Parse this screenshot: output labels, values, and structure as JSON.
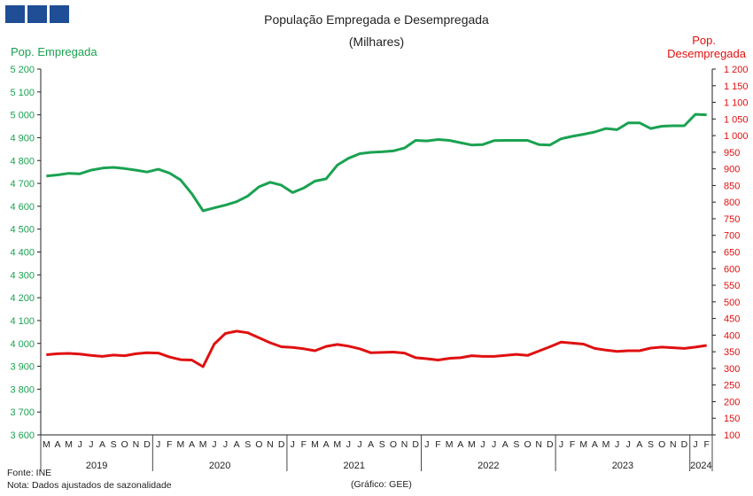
{
  "header": {
    "title": "População Empregada e Desempregada",
    "subtitle": "(Milhares)"
  },
  "axes": {
    "left_title": "Pop. Empregada",
    "right_title_line1": "Pop.",
    "right_title_line2": "Desempregada",
    "left_color": "#1aa251",
    "right_color": "#e01010"
  },
  "footer": {
    "source": "Fonte: INE",
    "note": "Nota: Dados ajustados de sazonalidade",
    "credit": "(Gráfico: GEE)"
  },
  "chart_data": {
    "type": "line",
    "title": "População Empregada e Desempregada",
    "subtitle": "(Milhares)",
    "x_months": [
      "M",
      "A",
      "M",
      "J",
      "J",
      "A",
      "S",
      "O",
      "N",
      "D",
      "J",
      "F",
      "M",
      "A",
      "M",
      "J",
      "J",
      "A",
      "S",
      "O",
      "N",
      "D",
      "J",
      "F",
      "M",
      "A",
      "M",
      "J",
      "J",
      "A",
      "S",
      "O",
      "N",
      "D",
      "J",
      "F",
      "M",
      "A",
      "M",
      "J",
      "J",
      "A",
      "S",
      "O",
      "N",
      "D",
      "J",
      "F",
      "M",
      "A",
      "M",
      "J",
      "J",
      "A",
      "S",
      "O",
      "N",
      "D",
      "J",
      "F"
    ],
    "years": [
      {
        "label": "2019",
        "start": 0,
        "end": 9
      },
      {
        "label": "2020",
        "start": 10,
        "end": 21
      },
      {
        "label": "2021",
        "start": 22,
        "end": 33
      },
      {
        "label": "2022",
        "start": 34,
        "end": 45
      },
      {
        "label": "2023",
        "start": 46,
        "end": 57
      },
      {
        "label": "2024",
        "start": 58,
        "end": 59
      }
    ],
    "left_axis": {
      "label": "Pop. Empregada",
      "min": 3600,
      "max": 5200,
      "step": 100,
      "tick_labels": [
        "3 600",
        "3 700",
        "3 800",
        "3 900",
        "4 000",
        "4 100",
        "4 200",
        "4 300",
        "4 400",
        "4 500",
        "4 600",
        "4 700",
        "4 800",
        "4 900",
        "5 000",
        "5 100",
        "5 200"
      ]
    },
    "right_axis": {
      "label": "Pop. Desempregada",
      "min": 100,
      "max": 1200,
      "step": 50,
      "tick_labels": [
        "100",
        "150",
        "200",
        "250",
        "300",
        "350",
        "400",
        "450",
        "500",
        "550",
        "600",
        "650",
        "700",
        "750",
        "800",
        "850",
        "900",
        "950",
        "1 000",
        "1 050",
        "1 100",
        "1 150",
        "1 200"
      ]
    },
    "series": [
      {
        "name": "Pop. Empregada",
        "axis": "left",
        "color": "#1aa251",
        "values": [
          4732,
          4737,
          4744,
          4742,
          4758,
          4767,
          4770,
          4765,
          4758,
          4750,
          4762,
          4745,
          4715,
          4655,
          4580,
          4593,
          4605,
          4620,
          4645,
          4685,
          4705,
          4692,
          4660,
          4680,
          4710,
          4720,
          4780,
          4810,
          4830,
          4836,
          4838,
          4842,
          4855,
          4888,
          4886,
          4892,
          4888,
          4878,
          4868,
          4870,
          4887,
          4888,
          4888,
          4888,
          4870,
          4868,
          4895,
          4906,
          4915,
          4925,
          4940,
          4935,
          4965,
          4965,
          4940,
          4950,
          4952,
          4952,
          5002,
          5000
        ]
      },
      {
        "name": "Pop. Desempregada",
        "axis": "right",
        "color": "#e01010",
        "values": [
          341,
          344,
          345,
          343,
          339,
          336,
          340,
          338,
          344,
          347,
          346,
          334,
          326,
          325,
          305,
          373,
          405,
          412,
          407,
          392,
          377,
          365,
          363,
          359,
          353,
          366,
          372,
          367,
          359,
          347,
          348,
          349,
          346,
          332,
          329,
          325,
          330,
          332,
          338,
          336,
          336,
          339,
          342,
          339,
          352,
          365,
          379,
          376,
          373,
          360,
          355,
          351,
          353,
          353,
          361,
          364,
          362,
          360,
          364,
          369
        ]
      }
    ]
  }
}
